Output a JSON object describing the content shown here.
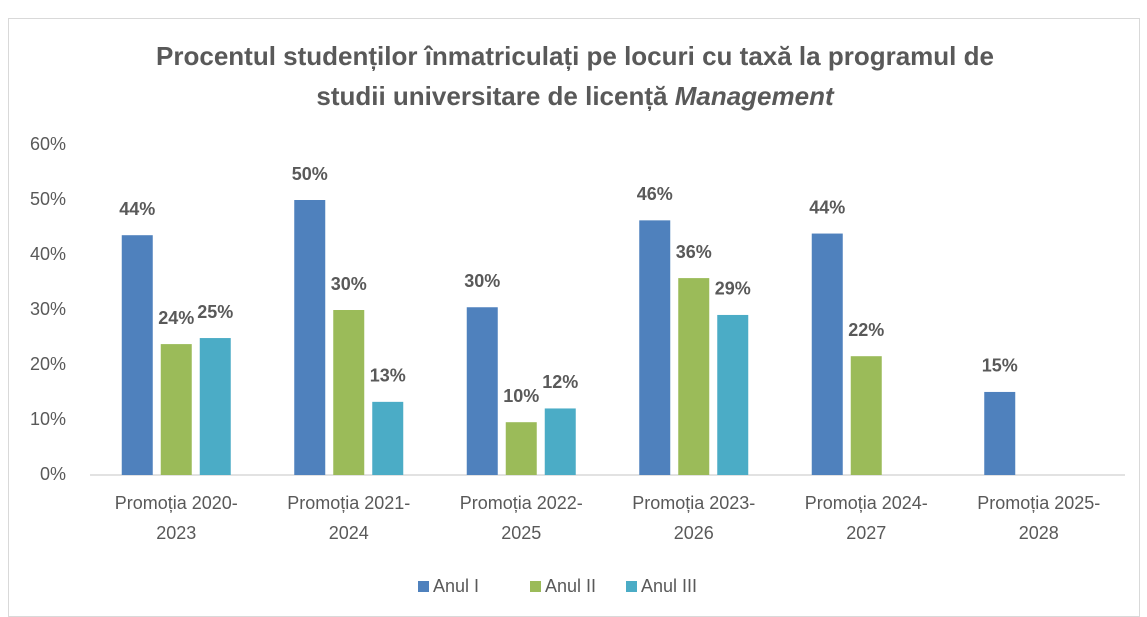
{
  "chart_data": {
    "type": "bar",
    "title_lines": [
      "Procentul studenților înmatriculați pe locuri cu taxă la programul de",
      "studii universitare de licență"
    ],
    "title_italic": "Management",
    "categories": [
      "Promoția 2020-2023",
      "Promoția 2021-2024",
      "Promoția 2022-2025",
      "Promoția 2023-2026",
      "Promoția 2024-2027",
      "Promoția 2025-2028"
    ],
    "series": [
      {
        "name": "Anul I",
        "color": "#4f81bd",
        "values": [
          43.6,
          50,
          30.5,
          46.3,
          43.9,
          15.1
        ],
        "value_labels": [
          "44%",
          "50%",
          "30%",
          "46%",
          "44%",
          "15%"
        ]
      },
      {
        "name": "Anul II",
        "color": "#9bbb59",
        "values": [
          23.8,
          30,
          9.6,
          35.8,
          21.6,
          null
        ],
        "value_labels": [
          "24%",
          "30%",
          "10%",
          "36%",
          "22%",
          null
        ]
      },
      {
        "name": "Anul III",
        "color": "#4bacc6",
        "values": [
          24.9,
          13.3,
          12.1,
          29.1,
          null,
          null
        ],
        "value_labels": [
          "25%",
          "13%",
          "12%",
          "29%",
          null,
          null
        ]
      }
    ],
    "ylim": [
      0,
      60
    ],
    "yticks": [
      {
        "value": 0,
        "label": "0%"
      },
      {
        "value": 10,
        "label": "10%"
      },
      {
        "value": 20,
        "label": "20%"
      },
      {
        "value": 30,
        "label": "30%"
      },
      {
        "value": 40,
        "label": "40%"
      },
      {
        "value": 50,
        "label": "50%"
      },
      {
        "value": 60,
        "label": "60%"
      }
    ],
    "grid": false,
    "legend": "bottom"
  }
}
